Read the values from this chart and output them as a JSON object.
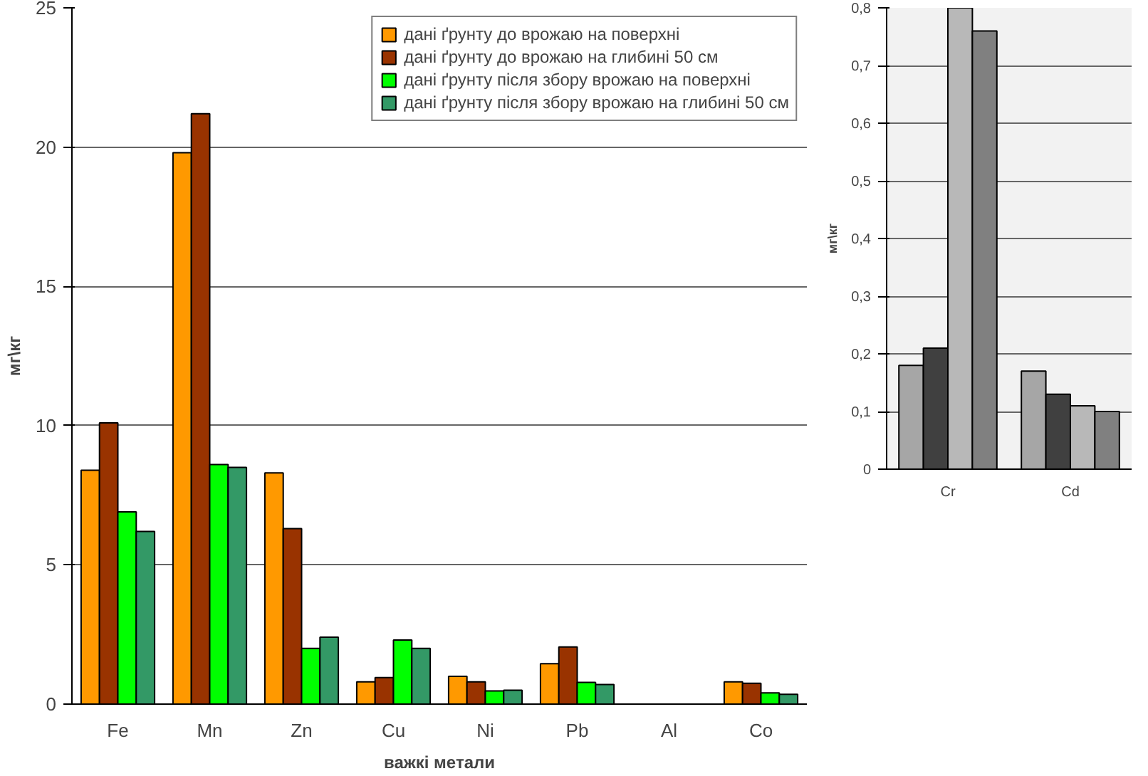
{
  "chart_data": [
    {
      "type": "bar",
      "xlabel": "важкі метали",
      "ylabel": "мг\\кг",
      "categories": [
        "Fe",
        "Mn",
        "Zn",
        "Cu",
        "Ni",
        "Pb",
        "Al",
        "Co"
      ],
      "series": [
        {
          "name": "дані ґрунту до врожаю на поверхні",
          "color": "#ff9900",
          "values": [
            8.4,
            19.8,
            8.3,
            0.8,
            1.0,
            1.45,
            null,
            0.8
          ]
        },
        {
          "name": "дані ґрунту до врожаю на глибині 50 см",
          "color": "#993300",
          "values": [
            10.1,
            21.2,
            6.3,
            0.95,
            0.8,
            2.05,
            null,
            0.75
          ]
        },
        {
          "name": "дані ґрунту після збору врожаю на поверхні",
          "color": "#00ff00",
          "values": [
            6.9,
            8.6,
            2.0,
            2.3,
            0.47,
            0.78,
            null,
            0.4
          ]
        },
        {
          "name": "дані ґрунту після збору врожаю на глибині 50 см",
          "color": "#339966",
          "values": [
            6.2,
            8.5,
            2.4,
            2.0,
            0.5,
            0.7,
            null,
            0.35
          ]
        }
      ],
      "ylim": [
        0,
        25
      ],
      "yticks": [
        0,
        5,
        10,
        15,
        20,
        25
      ],
      "grid": "y",
      "legend": "top right"
    },
    {
      "type": "bar",
      "ylabel": "мг\\кг",
      "categories": [
        "Cr",
        "Cd"
      ],
      "series": [
        {
          "color": "#a6a6a6",
          "values": [
            0.18,
            0.17
          ]
        },
        {
          "color": "#404040",
          "values": [
            0.21,
            0.13
          ]
        },
        {
          "color": "#b8b8b8",
          "values": [
            0.8,
            0.11
          ]
        },
        {
          "color": "#808080",
          "values": [
            0.76,
            0.1
          ]
        }
      ],
      "ylim": [
        0,
        0.8
      ],
      "yticks": [
        {
          "value": 0,
          "label": "0"
        },
        {
          "value": 0.1,
          "label": "0,1"
        },
        {
          "value": 0.2,
          "label": "0,2"
        },
        {
          "value": 0.3,
          "label": "0,3"
        },
        {
          "value": 0.4,
          "label": "0,4"
        },
        {
          "value": 0.5,
          "label": "0,5"
        },
        {
          "value": 0.6,
          "label": "0,6"
        },
        {
          "value": 0.7,
          "label": "0,7"
        },
        {
          "value": 0.8,
          "label": "0,8"
        }
      ],
      "grid": "y"
    }
  ]
}
